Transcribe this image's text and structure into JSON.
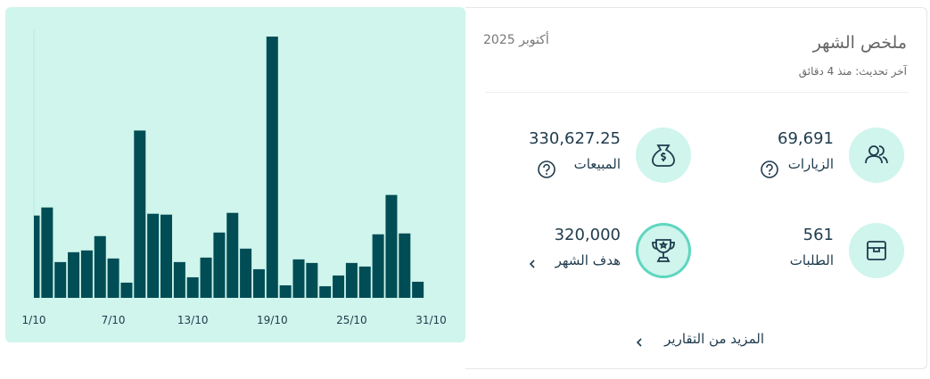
{
  "header": {
    "title": "ملخص الشهر",
    "period": "أكتوبر 2025",
    "updated": "آخر تحديث: منذ 4 دقائق"
  },
  "metrics": [
    {
      "label": "الزيارات",
      "value": "69,691"
    },
    {
      "label": "المبيعات",
      "value": "330,627.25"
    },
    {
      "label": "الطلبات",
      "value": "561"
    },
    {
      "label": "هدف الشهر",
      "value": "320,000"
    }
  ],
  "more_link": "المزيد من التقارير",
  "chart_data": {
    "type": "bar",
    "categories": [
      "1/10",
      null,
      null,
      null,
      null,
      null,
      "7/10",
      null,
      null,
      null,
      null,
      null,
      "13/10",
      null,
      null,
      null,
      null,
      null,
      "19/10",
      null,
      null,
      null,
      null,
      null,
      "25/10",
      null,
      null,
      null,
      null,
      null,
      "31/10"
    ],
    "values": [
      92,
      101,
      40,
      51,
      53,
      69,
      44,
      17,
      187,
      94,
      93,
      40,
      23,
      45,
      73,
      95,
      55,
      32,
      292,
      14,
      43,
      39,
      13,
      25,
      39,
      35,
      71,
      115,
      72,
      18,
      null
    ],
    "color": "#004d55",
    "ylim": [
      0,
      300
    ]
  }
}
